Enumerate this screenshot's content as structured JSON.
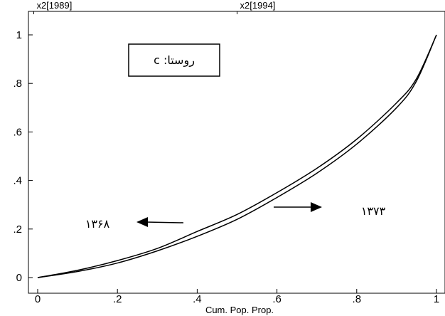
{
  "chart_data": {
    "type": "line",
    "title": "",
    "xlabel": "Cum. Pop. Prop.",
    "ylabel": "",
    "xlim": [
      0,
      1
    ],
    "ylim": [
      0,
      1
    ],
    "grid": false,
    "x_ticks": [
      {
        "value": 0,
        "label": "0"
      },
      {
        "value": 0.2,
        "label": ".2"
      },
      {
        "value": 0.4,
        "label": ".4"
      },
      {
        "value": 0.6,
        "label": ".6"
      },
      {
        "value": 0.8,
        "label": ".8"
      },
      {
        "value": 1,
        "label": "1"
      }
    ],
    "y_ticks": [
      {
        "value": 0,
        "label": "0"
      },
      {
        "value": 0.2,
        "label": ".2"
      },
      {
        "value": 0.4,
        "label": ".4"
      },
      {
        "value": 0.6,
        "label": ".6"
      },
      {
        "value": 0.8,
        "label": ".8"
      },
      {
        "value": 1,
        "label": "1"
      }
    ],
    "top_axis_labels": [
      {
        "x": 0.04,
        "label": "x2[1989]"
      },
      {
        "x": 0.55,
        "label": "x2[1994]"
      }
    ],
    "x": [
      0,
      0.1,
      0.2,
      0.3,
      0.4,
      0.5,
      0.6,
      0.7,
      0.8,
      0.9,
      0.95,
      1.0
    ],
    "series": [
      {
        "values": [
          0,
          0.03,
          0.07,
          0.12,
          0.19,
          0.26,
          0.35,
          0.45,
          0.57,
          0.72,
          0.82,
          1.0
        ]
      },
      {
        "values": [
          0,
          0.025,
          0.06,
          0.11,
          0.17,
          0.24,
          0.33,
          0.43,
          0.55,
          0.7,
          0.81,
          1.0
        ]
      }
    ],
    "legend_box": {
      "text": "روستا: c",
      "position": "top-left"
    },
    "annotations": [
      {
        "text": "۱۳۶۸",
        "x": 0.2,
        "y": 0.22,
        "arrow": "left"
      },
      {
        "text": "۱۳۷۳",
        "x": 0.79,
        "y": 0.29,
        "arrow": "right"
      }
    ]
  }
}
